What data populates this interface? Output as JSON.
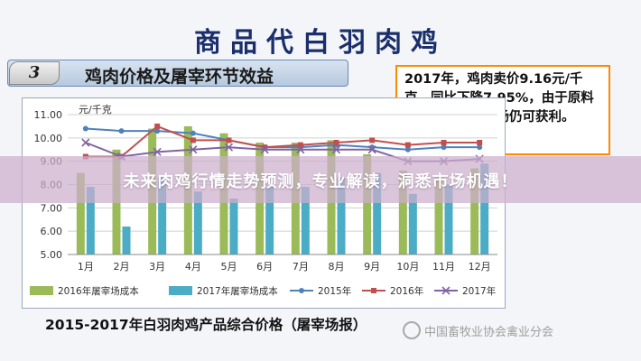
{
  "slide": {
    "main_title": "商品代白羽肉鸡",
    "section_number": "3",
    "section_title": "鸡肉价格及屠宰环节效益",
    "note": "2017年，鸡肉卖价9.16元/千克，同比下降7.95%，由于原料价格下降，屠宰场仍可获利。",
    "footer_title": "2015-2017年白羽肉鸡产品综合价格（屠宰场报）",
    "watermark": "中国畜牧业协会禽业分会"
  },
  "overlay": {
    "headline": "未来肉鸡行情走势预测，专业解读，洞悉市场机遇！"
  },
  "colors": {
    "bar_2016": "#9bbb59",
    "bar_2017": "#4bacc6",
    "line_2015": "#4f81bd",
    "line_2016": "#c0504d",
    "line_2017": "#8064a2",
    "title_text": "#1a2f6b",
    "note_border": "#ff8a00",
    "overlay_band": "#cdafcd"
  },
  "chart_data": {
    "type": "bar",
    "title": "",
    "xlabel": "",
    "ylabel": "元/千克",
    "ylim": [
      5.0,
      11.0
    ],
    "y_ticks": [
      "5.00",
      "6.00",
      "7.00",
      "8.00",
      "9.00",
      "10.00",
      "11.00"
    ],
    "categories": [
      "1月",
      "2月",
      "3月",
      "4月",
      "5月",
      "6月",
      "7月",
      "8月",
      "9月",
      "10月",
      "11月",
      "12月"
    ],
    "legend_position": "bottom",
    "bar_series": [
      {
        "name": "2016年屠宰场成本",
        "values": [
          8.5,
          9.5,
          10.4,
          10.5,
          10.2,
          9.8,
          9.8,
          9.9,
          9.3,
          8.6,
          8.3,
          8.7
        ]
      },
      {
        "name": "2017年屠宰场成本",
        "values": [
          7.9,
          6.2,
          8.3,
          7.7,
          7.4,
          7.9,
          7.9,
          8.3,
          8.5,
          7.6,
          8.0,
          8.9
        ]
      }
    ],
    "line_series": [
      {
        "name": "2015年",
        "values": [
          10.4,
          10.3,
          10.3,
          10.2,
          9.9,
          9.6,
          9.6,
          9.7,
          9.6,
          9.5,
          9.6,
          9.6
        ]
      },
      {
        "name": "2016年",
        "values": [
          9.2,
          9.2,
          10.5,
          9.9,
          9.9,
          9.6,
          9.7,
          9.8,
          9.9,
          9.7,
          9.8,
          9.8
        ]
      },
      {
        "name": "2017年",
        "values": [
          9.8,
          9.2,
          9.4,
          9.5,
          9.6,
          9.5,
          9.5,
          9.5,
          9.5,
          9.0,
          9.0,
          9.1
        ]
      }
    ]
  }
}
